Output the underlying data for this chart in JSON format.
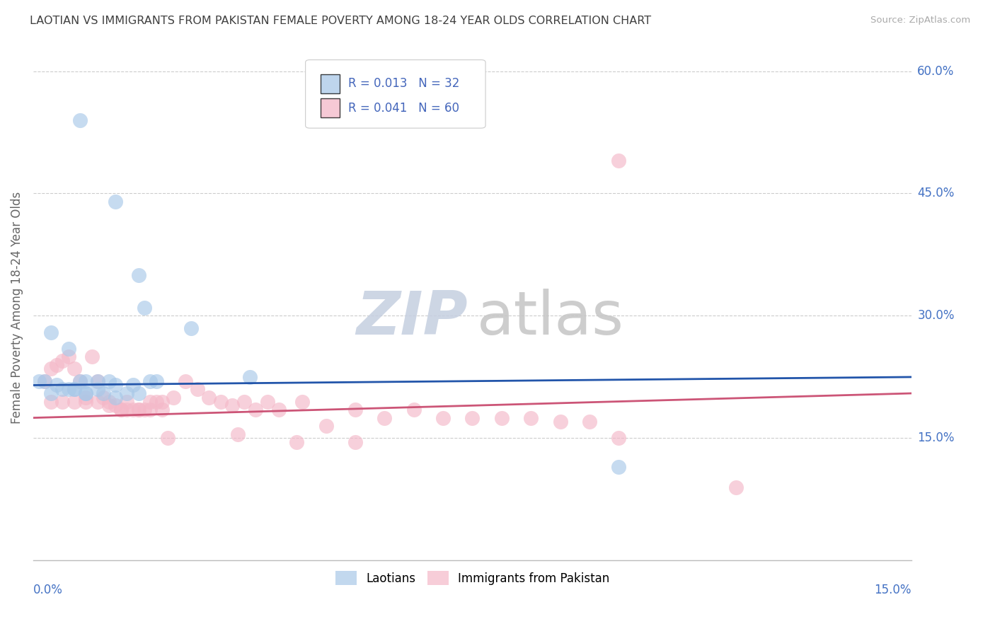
{
  "title": "LAOTIAN VS IMMIGRANTS FROM PAKISTAN FEMALE POVERTY AMONG 18-24 YEAR OLDS CORRELATION CHART",
  "source": "Source: ZipAtlas.com",
  "ylabel": "Female Poverty Among 18-24 Year Olds",
  "xlim": [
    0.0,
    0.15
  ],
  "ylim": [
    0.0,
    0.62
  ],
  "yticks": [
    0.15,
    0.3,
    0.45,
    0.6
  ],
  "ytick_labels": [
    "15.0%",
    "30.0%",
    "45.0%",
    "60.0%"
  ],
  "laotian_color": "#a8c8e8",
  "pakistan_color": "#f4b8c8",
  "laotian_line_color": "#2255aa",
  "pakistan_line_color": "#cc5577",
  "legend_text_color": "#4466bb",
  "background_color": "#ffffff",
  "grid_color": "#cccccc",
  "title_color": "#404040",
  "axis_color": "#4472c4",
  "axis_label_color": "#666666",
  "laotian_R": "0.013",
  "laotian_N": "32",
  "pakistan_R": "0.041",
  "pakistan_N": "60",
  "laotian_x": [
    0.008,
    0.014,
    0.018,
    0.019,
    0.003,
    0.006,
    0.008,
    0.009,
    0.011,
    0.013,
    0.002,
    0.004,
    0.006,
    0.007,
    0.009,
    0.012,
    0.014,
    0.016,
    0.018,
    0.02,
    0.003,
    0.005,
    0.007,
    0.009,
    0.011,
    0.014,
    0.017,
    0.021,
    0.027,
    0.037,
    0.1,
    0.001
  ],
  "laotian_y": [
    0.54,
    0.44,
    0.35,
    0.31,
    0.28,
    0.26,
    0.22,
    0.22,
    0.22,
    0.22,
    0.22,
    0.215,
    0.21,
    0.21,
    0.205,
    0.205,
    0.2,
    0.205,
    0.205,
    0.22,
    0.205,
    0.21,
    0.21,
    0.205,
    0.21,
    0.215,
    0.215,
    0.22,
    0.285,
    0.225,
    0.115,
    0.22
  ],
  "pakistan_x": [
    0.002,
    0.003,
    0.004,
    0.005,
    0.006,
    0.007,
    0.008,
    0.009,
    0.01,
    0.011,
    0.012,
    0.013,
    0.014,
    0.015,
    0.016,
    0.017,
    0.018,
    0.019,
    0.02,
    0.021,
    0.022,
    0.003,
    0.005,
    0.007,
    0.009,
    0.011,
    0.013,
    0.015,
    0.016,
    0.018,
    0.02,
    0.022,
    0.024,
    0.026,
    0.028,
    0.03,
    0.032,
    0.034,
    0.036,
    0.038,
    0.04,
    0.042,
    0.046,
    0.05,
    0.055,
    0.06,
    0.065,
    0.07,
    0.075,
    0.08,
    0.085,
    0.09,
    0.095,
    0.1,
    0.023,
    0.035,
    0.045,
    0.055,
    0.1,
    0.12
  ],
  "pakistan_y": [
    0.22,
    0.235,
    0.24,
    0.245,
    0.25,
    0.235,
    0.22,
    0.2,
    0.25,
    0.22,
    0.2,
    0.195,
    0.19,
    0.185,
    0.185,
    0.185,
    0.185,
    0.185,
    0.185,
    0.195,
    0.185,
    0.195,
    0.195,
    0.195,
    0.195,
    0.195,
    0.19,
    0.185,
    0.195,
    0.185,
    0.195,
    0.195,
    0.2,
    0.22,
    0.21,
    0.2,
    0.195,
    0.19,
    0.195,
    0.185,
    0.195,
    0.185,
    0.195,
    0.165,
    0.185,
    0.175,
    0.185,
    0.175,
    0.175,
    0.175,
    0.175,
    0.17,
    0.17,
    0.49,
    0.15,
    0.155,
    0.145,
    0.145,
    0.15,
    0.09
  ],
  "watermark_zip_color": "#c5cfe0",
  "watermark_atlas_color": "#c5c5c5"
}
